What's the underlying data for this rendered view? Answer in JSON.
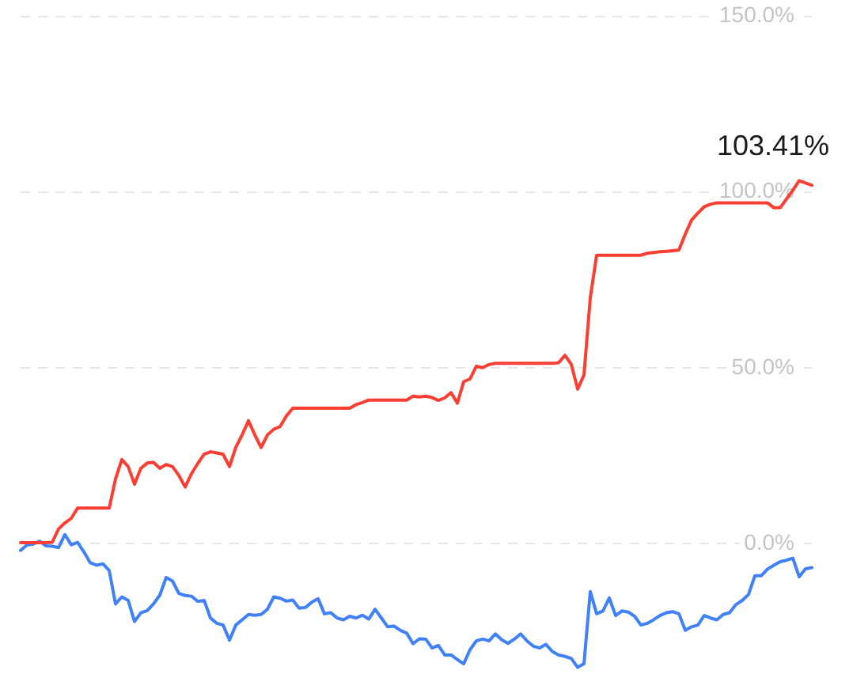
{
  "chart_data": {
    "type": "line",
    "categories": [
      null,
      null,
      null,
      null,
      null,
      null,
      null,
      null,
      null,
      null,
      null,
      null,
      null,
      null,
      null,
      null,
      null,
      null,
      null,
      null,
      null,
      null,
      null,
      null,
      null,
      null,
      null,
      null,
      null,
      null,
      null,
      null,
      null,
      null,
      null,
      null,
      null,
      null,
      null,
      null,
      null,
      null,
      null,
      null,
      null,
      null,
      null,
      null,
      null,
      null,
      null,
      null,
      null,
      null,
      null,
      null,
      null,
      null,
      null,
      null,
      null,
      null,
      null,
      null,
      null,
      null,
      null,
      null,
      null,
      null,
      null,
      null,
      null,
      null,
      null,
      null,
      null,
      null,
      null,
      null,
      null,
      null,
      null,
      null,
      null,
      null,
      null,
      null,
      null,
      null,
      null,
      null,
      null,
      null,
      null,
      null,
      null,
      null,
      null,
      null,
      null,
      null,
      null,
      null,
      null,
      null,
      null,
      null,
      null,
      null,
      null,
      null,
      null,
      null,
      null,
      null,
      null,
      null,
      null,
      null,
      null,
      null,
      null,
      null,
      null,
      null
    ],
    "series": [
      {
        "color": "#fa3e32",
        "values": [
          0.4,
          0.4,
          0.4,
          0.4,
          0.4,
          0.5,
          4.3,
          6.0,
          7.3,
          10.2,
          10.2,
          10.2,
          10.2,
          10.2,
          10.2,
          18.5,
          24.0,
          22.0,
          17.0,
          21.5,
          23.0,
          23.2,
          21.5,
          22.6,
          22.0,
          19.5,
          16.2,
          20.0,
          22.9,
          25.5,
          26.2,
          25.9,
          25.5,
          22.0,
          27.5,
          31.0,
          35.0,
          31.0,
          27.4,
          31.0,
          32.6,
          33.4,
          36.4,
          38.6,
          38.6,
          38.6,
          38.6,
          38.6,
          38.6,
          38.6,
          38.6,
          38.6,
          38.6,
          39.6,
          40.2,
          40.9,
          40.9,
          40.9,
          40.9,
          40.9,
          40.9,
          40.9,
          42.0,
          41.8,
          42.0,
          41.6,
          40.8,
          41.5,
          43.0,
          40.0,
          46.1,
          46.9,
          50.5,
          50.1,
          51.0,
          51.3,
          51.3,
          51.3,
          51.3,
          51.3,
          51.3,
          51.3,
          51.3,
          51.3,
          51.3,
          51.5,
          53.6,
          51.0,
          44.0,
          48.0,
          70.0,
          82.0,
          82.0,
          82.0,
          82.0,
          82.0,
          82.0,
          82.0,
          82.0,
          82.6,
          82.8,
          83.0,
          83.1,
          83.3,
          83.5,
          88.0,
          92.0,
          94.0,
          95.8,
          96.5,
          96.9,
          96.9,
          96.9,
          96.9,
          96.9,
          96.9,
          96.9,
          96.9,
          96.9,
          95.5,
          95.5,
          98.0,
          100.5,
          103.2,
          102.5,
          101.9
        ]
      },
      {
        "color": "#4080f8",
        "values": [
          -1.8,
          -0.3,
          0.0,
          0.8,
          -0.5,
          -0.6,
          -1.0,
          2.7,
          -0.2,
          0.5,
          -2.2,
          -5.3,
          -6.0,
          -5.6,
          -7.5,
          -17.0,
          -15.0,
          -16.0,
          -22.0,
          -19.5,
          -18.9,
          -17.0,
          -14.5,
          -9.5,
          -10.5,
          -14.0,
          -14.6,
          -14.8,
          -16.3,
          -16.0,
          -21.0,
          -22.5,
          -23.0,
          -27.3,
          -23.0,
          -21.5,
          -20.0,
          -20.2,
          -20.0,
          -18.5,
          -15.0,
          -15.4,
          -16.2,
          -15.9,
          -18.2,
          -18.0,
          -16.5,
          -15.5,
          -19.8,
          -19.5,
          -21.0,
          -21.5,
          -20.5,
          -21.0,
          -20.2,
          -21.3,
          -18.5,
          -21.0,
          -23.5,
          -23.3,
          -24.5,
          -25.3,
          -28.3,
          -26.9,
          -27.0,
          -29.5,
          -28.8,
          -31.5,
          -31.5,
          -32.8,
          -34.0,
          -30.0,
          -27.5,
          -27.0,
          -27.5,
          -25.5,
          -27.2,
          -28.2,
          -27.0,
          -25.5,
          -27.5,
          -29.0,
          -29.5,
          -28.5,
          -30.5,
          -31.5,
          -31.9,
          -32.5,
          -35.0,
          -34.0,
          -13.5,
          -19.8,
          -19.0,
          -15.3,
          -20.3,
          -19.0,
          -19.3,
          -20.5,
          -23.0,
          -22.5,
          -21.5,
          -20.3,
          -19.5,
          -19.2,
          -19.8,
          -24.5,
          -23.5,
          -23.0,
          -20.3,
          -21.0,
          -21.5,
          -20.0,
          -19.5,
          -17.2,
          -16.0,
          -14.3,
          -9.0,
          -9.0,
          -7.1,
          -6.0,
          -5.0,
          -4.6,
          -4.0,
          -9.3,
          -7.0,
          -6.7
        ]
      }
    ],
    "ylim": [
      -36,
      150
    ],
    "yticks": [
      {
        "value": 0,
        "label": "0.0%"
      },
      {
        "value": 50,
        "label": "50.0%"
      },
      {
        "value": 100,
        "label": "100.0%"
      },
      {
        "value": 150,
        "label": "150.0%"
      }
    ],
    "grid": "y",
    "annotations": [
      "103.41%"
    ]
  }
}
